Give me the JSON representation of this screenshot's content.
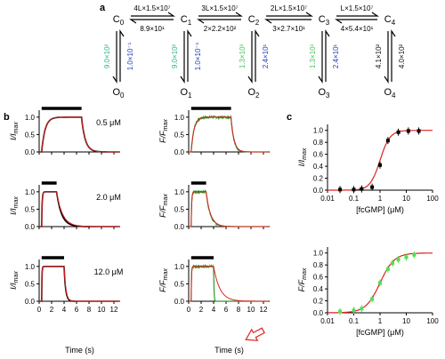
{
  "panel_a": {
    "label": "a",
    "closed_states": [
      "C0",
      "C1",
      "C2",
      "C3",
      "C4"
    ],
    "open_states": [
      "O0",
      "O1",
      "O2",
      "O3",
      "O4"
    ],
    "forward_rates": [
      "4L×1.5×10⁷",
      "3L×1.5×10⁷",
      "2L×1.5×10⁷",
      "L×1.5×10⁷"
    ],
    "backward_rates": [
      "8.9×10¹",
      "2×2.2×10²",
      "3×2.7×10¹",
      "4×5.4×10¹"
    ],
    "opening_rates": [
      "9.0×10²",
      "9.0×10²",
      "1.3×10³",
      "1.3×10³",
      "4.1×10²"
    ],
    "closing_rates": [
      "1.0×10⁻¹",
      "1.0×10⁻¹",
      "2.4×10¹",
      "2.4×10¹",
      "4.0×10²"
    ],
    "colors": {
      "teal": "#2bb58a",
      "green": "#4cc35c",
      "blue": "#1f3fbf",
      "black": "#111111"
    }
  },
  "panel_b": {
    "label": "b",
    "concentrations": [
      "0.5 μM",
      "2.0 μM",
      "12.0 μM"
    ],
    "left_ylabel": "I/I_max",
    "right_ylabel": "F/F_max",
    "xlabel": "Time (s)",
    "yticks": [
      "0.0",
      "0.5",
      "1.0"
    ],
    "xticks": [
      "0",
      "2",
      "4",
      "6",
      "8",
      "10",
      "12"
    ]
  },
  "panel_c": {
    "label": "c",
    "top_ylabel": "I/I_max",
    "bottom_ylabel": "F/F_max",
    "xlabel": "[fcGMP] (μM)",
    "xticks": [
      "0.01",
      "0.1",
      "1",
      "10",
      "100"
    ],
    "yticks": [
      "0.0",
      "0.2",
      "0.4",
      "0.6",
      "0.8",
      "1.0"
    ]
  },
  "chart_data": [
    {
      "type": "line",
      "panel": "b-current",
      "conditions": [
        "0.5 μM",
        "2.0 μM",
        "12.0 μM"
      ],
      "xlabel": "Time (s)",
      "ylabel": "I/I_max",
      "xlim": [
        0,
        13
      ],
      "ylim": [
        0,
        1.2
      ],
      "pulse_s": [
        [
          0.4,
          6.8
        ],
        [
          0.4,
          2.8
        ],
        [
          0.4,
          4.0
        ]
      ],
      "series": [
        {
          "color": "#000000",
          "rise_tau_s": [
            0.55,
            0.08,
            0.05
          ],
          "decay_tau_s": [
            0.6,
            0.8,
            0.25
          ]
        },
        {
          "color": "#e02020",
          "rise_tau_s": [
            0.55,
            0.08,
            0.05
          ],
          "decay_tau_s": [
            0.62,
            0.95,
            0.28
          ]
        }
      ]
    },
    {
      "type": "line",
      "panel": "b-fluorescence",
      "conditions": [
        "0.5 μM",
        "2.0 μM",
        "12.0 μM"
      ],
      "xlabel": "Time (s)",
      "ylabel": "F/F_max",
      "xlim": [
        0,
        13
      ],
      "ylim": [
        0,
        1.2
      ],
      "pulse_s": [
        [
          0.4,
          6.8
        ],
        [
          0.4,
          2.8
        ],
        [
          0.4,
          4.0
        ]
      ],
      "series": [
        {
          "color": "#2a9a2a",
          "rise_tau_s": [
            0.45,
            0.08,
            0.05
          ],
          "decay_tau_s": [
            0.45,
            0.65,
            0.06
          ]
        },
        {
          "color": "#e02020",
          "rise_tau_s": [
            0.45,
            0.08,
            0.05
          ],
          "decay_tau_s": [
            0.47,
            0.7,
            1.0
          ]
        }
      ]
    },
    {
      "type": "scatter",
      "panel": "c-top",
      "xlabel": "[fcGMP] (μM)",
      "ylabel": "I/I_max",
      "xscale": "log",
      "xlim": [
        0.01,
        100
      ],
      "ylim": [
        0,
        1.1
      ],
      "points": [
        [
          0.03,
          0.01
        ],
        [
          0.1,
          0.01
        ],
        [
          0.2,
          0.02
        ],
        [
          0.5,
          0.05
        ],
        [
          1.0,
          0.42
        ],
        [
          2.0,
          0.83
        ],
        [
          5.0,
          0.97
        ],
        [
          12.0,
          0.99
        ],
        [
          30.0,
          0.99
        ]
      ],
      "fit": {
        "color": "#e02020",
        "ec50": 1.0,
        "hill": 2.3
      },
      "marker_color": "#000000"
    },
    {
      "type": "scatter",
      "panel": "c-bottom",
      "xlabel": "[fcGMP] (μM)",
      "ylabel": "F/F_max",
      "xscale": "log",
      "xlim": [
        0.01,
        100
      ],
      "ylim": [
        0,
        1.1
      ],
      "points": [
        [
          0.03,
          0.02
        ],
        [
          0.1,
          0.04
        ],
        [
          0.2,
          0.07
        ],
        [
          0.5,
          0.23
        ],
        [
          1.0,
          0.5
        ],
        [
          2.0,
          0.73
        ],
        [
          3.0,
          0.83
        ],
        [
          5.0,
          0.89
        ],
        [
          10.0,
          0.93
        ],
        [
          20.0,
          0.97
        ]
      ],
      "fit": {
        "color": "#e02020",
        "ec50": 1.0,
        "hill": 1.6
      },
      "marker_color": "#55dd55"
    }
  ]
}
